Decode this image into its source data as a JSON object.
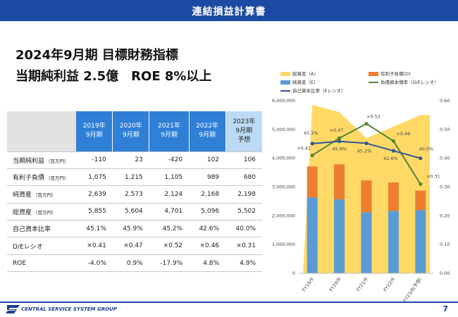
{
  "header": {
    "title": "連結損益計算書"
  },
  "headline": {
    "line1": "2024年9月期 目標財務指標",
    "line2": "当期純利益 2.5億　ROE 8%以上"
  },
  "table": {
    "columns": [
      {
        "year": "2019年",
        "period": "9月期",
        "note": ""
      },
      {
        "year": "2020年",
        "period": "9月期",
        "note": ""
      },
      {
        "year": "2021年",
        "period": "9月期",
        "note": ""
      },
      {
        "year": "2022年",
        "period": "9月期",
        "note": ""
      },
      {
        "year": "2023年",
        "period": "9月期",
        "note": "予想"
      }
    ],
    "rows": [
      {
        "label": "当期純利益",
        "unit": "（百万円）",
        "values": [
          "-110",
          "23",
          "-420",
          "102",
          "106"
        ]
      },
      {
        "label": "有利子負債",
        "unit": "（百万円）",
        "values": [
          "1,075",
          "1,215",
          "1,105",
          "989",
          "680"
        ]
      },
      {
        "label": "純資産",
        "unit": "（百万円）",
        "values": [
          "2,639",
          "2,573",
          "2,124",
          "2,168",
          "2,198"
        ]
      },
      {
        "label": "総資産",
        "unit": "（百万円）",
        "values": [
          "5,855",
          "5,604",
          "4,701",
          "5,096",
          "5,502"
        ]
      },
      {
        "label": "自己資本比率",
        "unit": "",
        "values": [
          "45.1%",
          "45.9%",
          "45.2%",
          "42.6%",
          "40.0%"
        ]
      },
      {
        "label": "D/Eレシオ",
        "unit": "",
        "values": [
          "×0.41",
          "×0.47",
          "×0.52",
          "×0.46",
          "×0.31"
        ]
      },
      {
        "label": "ROE",
        "unit": "",
        "values": [
          "-4.0%",
          "0.9%",
          "-17.9%",
          "4.8%",
          "4.9%"
        ]
      }
    ]
  },
  "chart_data": {
    "type": "bar",
    "categories": [
      "FY19/9",
      "FY20/9",
      "FY21/9",
      "FY22/9",
      "FY23/9(予想)"
    ],
    "series": [
      {
        "name": "総資産（A）",
        "kind": "area",
        "axis": "left",
        "values": [
          5855000,
          5604000,
          4701000,
          5096000,
          5502000
        ],
        "color": "#ffd966"
      },
      {
        "name": "純資産（E）",
        "kind": "stacked-bar",
        "axis": "left",
        "values": [
          2639000,
          2573000,
          2124000,
          2168000,
          2198000
        ],
        "color": "#5b9bd5"
      },
      {
        "name": "有利子負債(D)",
        "kind": "stacked-bar",
        "axis": "left",
        "values": [
          1075000,
          1215000,
          1105000,
          989000,
          680000
        ],
        "color": "#ed7d31"
      },
      {
        "name": "負債資本増率（D/Eレシオ）",
        "kind": "line",
        "axis": "right",
        "values": [
          0.41,
          0.47,
          0.52,
          0.46,
          0.31
        ],
        "labels": [
          "×0.41",
          "×0.47",
          "×0.52",
          "×0.46",
          "×0.31"
        ],
        "color": "#548235"
      },
      {
        "name": "自己資本比率（Eレシオ）",
        "kind": "line",
        "axis": "right",
        "values": [
          0.451,
          0.459,
          0.452,
          0.426,
          0.4
        ],
        "labels": [
          "45.1%",
          "45.9%",
          "45.2%",
          "42.6%",
          "40.0%"
        ],
        "color": "#2f5597"
      }
    ],
    "y_left": {
      "min": 0,
      "max": 6000000,
      "ticks": [
        "0",
        "1,000,000",
        "2,000,000",
        "3,000,000",
        "4,000,000",
        "5,000,000",
        "6,000,000"
      ]
    },
    "y_right": {
      "min": 0,
      "max": 0.6,
      "ticks": [
        "0.00",
        "0.10",
        "0.20",
        "0.30",
        "0.40",
        "0.50",
        "0.60"
      ]
    },
    "legend_position": "top"
  },
  "footer": {
    "logo_text": "CENTRAL SERVICE SYSTEM GROUP",
    "page_number": "7"
  },
  "colors": {
    "brand": "#1c4aa3",
    "table_header": "#2f7fd6",
    "forecast_header": "#bcdaf5"
  }
}
